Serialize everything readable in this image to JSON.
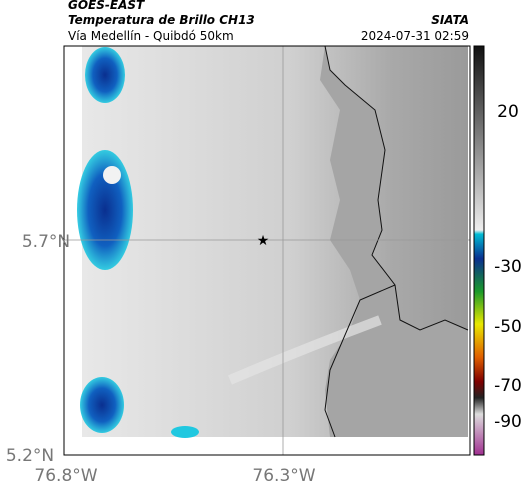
{
  "header": {
    "satellite": "GOES-EAST",
    "product": "Temperatura de Brillo CH13",
    "region": "Vía Medellín - Quibdó 50km",
    "source": "SIATA",
    "datetime": "2024-07-31 02:59"
  },
  "axes": {
    "lat_ticks": [
      "5.7°N",
      "5.2°N"
    ],
    "lon_ticks": [
      "76.8°W",
      "76.3°W"
    ]
  },
  "colorbar": {
    "ticks": [
      "20",
      "-30",
      "-50",
      "-70",
      "-90"
    ]
  }
}
